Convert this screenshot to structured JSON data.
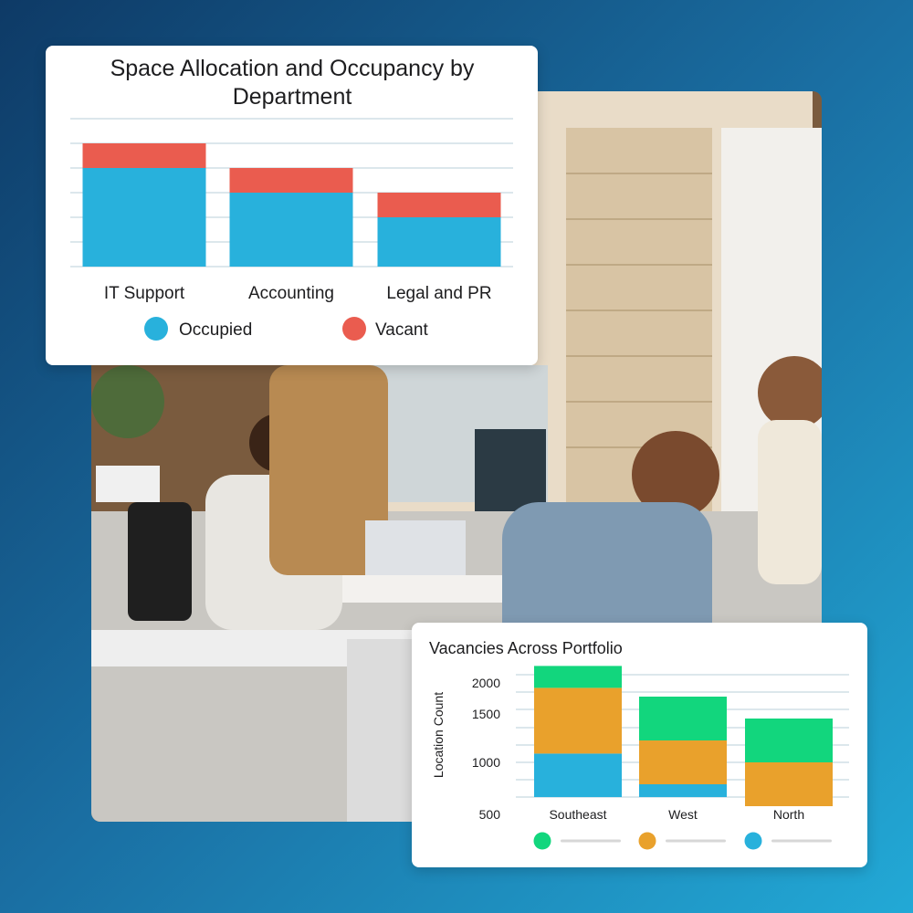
{
  "colors": {
    "occupied": "#28b1dc",
    "vacant": "#ea5c4f",
    "green": "#12d67d",
    "orange": "#e9a12c",
    "blue": "#28b1dc",
    "grid": "#b9cfd9",
    "legend_bar": "#d7d7d7"
  },
  "chart_data": [
    {
      "type": "bar",
      "stacked": true,
      "title": "Space Allocation and Occupancy by Department",
      "categories": [
        "IT Support",
        "Accounting",
        "Legal and PR"
      ],
      "series": [
        {
          "name": "Occupied",
          "values": [
            4,
            3,
            2
          ]
        },
        {
          "name": "Vacant",
          "values": [
            1,
            1,
            1
          ]
        }
      ],
      "ylim": [
        0,
        5
      ],
      "grid": true,
      "legend": "bottom"
    },
    {
      "type": "bar",
      "stacked": true,
      "title": "Vacancies Across Portfolio",
      "ylabel": "Location Count",
      "categories": [
        "Southeast",
        "West",
        "North"
      ],
      "series": [
        {
          "name": "",
          "values": [
            1100,
            750,
            500
          ]
        },
        {
          "name": "",
          "values": [
            750,
            500,
            500
          ]
        },
        {
          "name": "",
          "values": [
            250,
            500,
            500
          ]
        }
      ],
      "yticks": [
        500,
        1000,
        1500,
        2000
      ],
      "ylim": [
        250,
        2100
      ],
      "grid": true,
      "legend": "bottom"
    }
  ]
}
